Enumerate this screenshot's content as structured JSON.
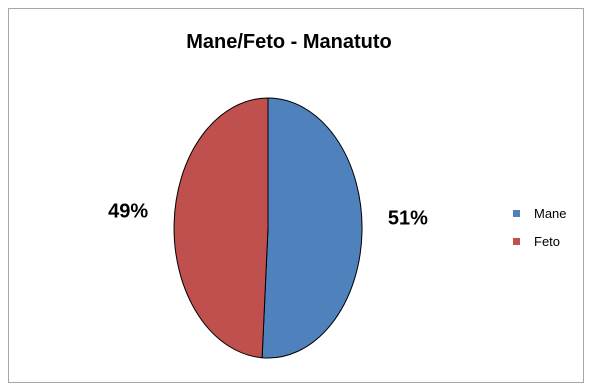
{
  "chart_data": {
    "type": "pie",
    "title": "Mane/Feto - Manatuto",
    "categories": [
      "Mane",
      "Feto"
    ],
    "values": [
      51,
      49
    ],
    "data_labels": [
      "51%",
      "49%"
    ],
    "colors": [
      "#4f81bd",
      "#c0504d"
    ],
    "legend": {
      "placement": "right",
      "entries": [
        "Mane",
        "Feto"
      ]
    }
  }
}
